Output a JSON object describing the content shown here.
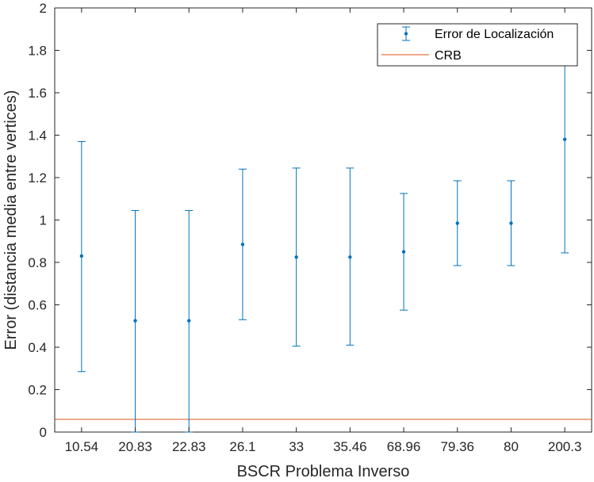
{
  "chart_data": {
    "type": "errorbar",
    "categories": [
      "10.54",
      "20.83",
      "22.83",
      "26.1",
      "33",
      "35.46",
      "68.96",
      "79.36",
      "80",
      "200.3"
    ],
    "series": [
      {
        "name": "Error de Localización",
        "values": [
          0.83,
          0.525,
          0.525,
          0.885,
          0.825,
          0.825,
          0.85,
          0.985,
          0.985,
          1.38
        ],
        "lower": [
          0.285,
          0.0,
          0.0,
          0.53,
          0.405,
          0.41,
          0.575,
          0.785,
          0.785,
          0.845
        ],
        "upper": [
          1.37,
          1.045,
          1.045,
          1.24,
          1.245,
          1.245,
          1.125,
          1.185,
          1.185,
          1.915
        ],
        "color": "#0072BD"
      },
      {
        "name": "CRB",
        "type": "hline",
        "value": 0.06,
        "color": "#D95319"
      }
    ],
    "xlabel": "BSCR Problema Inverso",
    "ylabel": "Error (distancia media entre vertices)",
    "ylim": [
      0,
      2
    ],
    "yticks": [
      0,
      0.2,
      0.4,
      0.6,
      0.8,
      1,
      1.2,
      1.4,
      1.6,
      1.8,
      2
    ],
    "ytick_labels": [
      "0",
      "0.2",
      "0.4",
      "0.6",
      "0.8",
      "1",
      "1.2",
      "1.4",
      "1.6",
      "1.8",
      "2"
    ],
    "grid": false,
    "legend_position": "top-right"
  }
}
